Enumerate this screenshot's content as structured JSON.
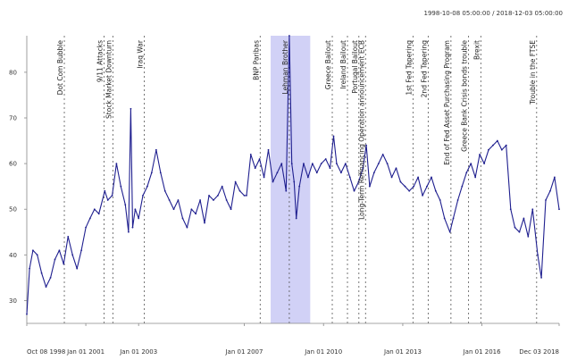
{
  "chart_data": {
    "type": "line",
    "title": "",
    "subtitle": "1998-10-08 05:00:00 / 2018-12-03 05:00:00",
    "xlabel": "",
    "ylabel": "",
    "xlim": [
      "1998-10-08",
      "2018-12-03"
    ],
    "ylim": [
      25,
      88
    ],
    "grid": false,
    "legend": "none",
    "colors": {
      "line": "#1f1f8f",
      "shade": "#c9c9f5",
      "event_line": "#555555"
    },
    "y_ticks": [
      30,
      40,
      50,
      60,
      70,
      80
    ],
    "x_ticks": [
      {
        "label": "Oct 08 1998",
        "date": "1998-10-08"
      },
      {
        "label": "Jan 01 2001",
        "date": "2001-01-01"
      },
      {
        "label": "Jan 01 2003",
        "date": "2003-01-01"
      },
      {
        "label": "Jan 01 2007",
        "date": "2007-01-01"
      },
      {
        "label": "Jan 01 2010",
        "date": "2010-01-01"
      },
      {
        "label": "Jan 01 2013",
        "date": "2013-01-01"
      },
      {
        "label": "Jan 01 2016",
        "date": "2016-01-01"
      },
      {
        "label": "Dec 03 2018",
        "date": "2018-12-03"
      }
    ],
    "shaded_regions": [
      {
        "start": "2008-01-01",
        "end": "2009-07-01"
      }
    ],
    "events": [
      {
        "date": "2000-03-10",
        "label": "Dot Com Bubble"
      },
      {
        "date": "2001-09-11",
        "label": "9/11 Attacks"
      },
      {
        "date": "2002-01-10",
        "label": "Stock Market Downturn"
      },
      {
        "date": "2003-03-20",
        "label": "Iraq War"
      },
      {
        "date": "2007-08-09",
        "label": "BNP Paribas"
      },
      {
        "date": "2008-09-15",
        "label": "Lehman Brother"
      },
      {
        "date": "2010-05-02",
        "label": "Greece Bailout"
      },
      {
        "date": "2010-11-28",
        "label": "Ireland Bailout"
      },
      {
        "date": "2011-05-05",
        "label": "Portugal Bailout"
      },
      {
        "date": "2011-08-05",
        "label": "Long-Term Refinancing Operation announcement ECB"
      },
      {
        "date": "2013-05-22",
        "label": "1st Fed Tapering"
      },
      {
        "date": "2013-12-18",
        "label": "2nd Fed Tapering"
      },
      {
        "date": "2014-10-29",
        "label": "End of Fed Asset Purchasing Program"
      },
      {
        "date": "2015-06-30",
        "label": "Greece Bank Crisis bonds trouble"
      },
      {
        "date": "2015-12-16",
        "label": "Brexit"
      },
      {
        "date": "2018-01-26",
        "label": "Trouble in the FTSE"
      }
    ],
    "series": [
      {
        "x": [
          "1998-10-08",
          "1998-11-15",
          "1999-01-01",
          "1999-03-01",
          "1999-05-01",
          "1999-07-01",
          "1999-09-01",
          "1999-11-01",
          "2000-01-01",
          "2000-03-01",
          "2000-05-01",
          "2000-07-01",
          "2000-09-01",
          "2000-11-01",
          "2001-01-01",
          "2001-03-01",
          "2001-05-01",
          "2001-07-01",
          "2001-09-20",
          "2001-11-01",
          "2002-01-01",
          "2002-03-01",
          "2002-05-01",
          "2002-07-01",
          "2002-08-15",
          "2002-09-15",
          "2002-10-10",
          "2002-11-15",
          "2003-01-01",
          "2003-03-01",
          "2003-05-01",
          "2003-07-01",
          "2003-09-01",
          "2003-11-01",
          "2004-01-01",
          "2004-03-01",
          "2004-05-01",
          "2004-07-01",
          "2004-09-01",
          "2004-11-01",
          "2005-01-01",
          "2005-03-01",
          "2005-05-01",
          "2005-07-01",
          "2005-09-01",
          "2005-11-01",
          "2006-01-01",
          "2006-03-01",
          "2006-05-01",
          "2006-07-01",
          "2006-09-01",
          "2006-11-01",
          "2007-01-01",
          "2007-02-01",
          "2007-04-01",
          "2007-06-01",
          "2007-08-01",
          "2007-10-01",
          "2007-12-01",
          "2008-02-01",
          "2008-04-01",
          "2008-06-01",
          "2008-08-01",
          "2008-09-15",
          "2008-10-20",
          "2008-11-20",
          "2008-12-20",
          "2009-02-01",
          "2009-04-01",
          "2009-06-01",
          "2009-08-01",
          "2009-10-01",
          "2009-12-01",
          "2010-02-01",
          "2010-04-01",
          "2010-05-20",
          "2010-07-01",
          "2010-09-01",
          "2010-11-01",
          "2011-01-01",
          "2011-03-01",
          "2011-05-01",
          "2011-07-01",
          "2011-08-15",
          "2011-10-01",
          "2011-12-01",
          "2012-02-01",
          "2012-04-01",
          "2012-06-01",
          "2012-08-01",
          "2012-10-01",
          "2012-12-01",
          "2013-02-01",
          "2013-04-01",
          "2013-06-01",
          "2013-08-01",
          "2013-10-01",
          "2013-12-01",
          "2014-02-01",
          "2014-04-01",
          "2014-06-01",
          "2014-08-01",
          "2014-10-15",
          "2014-12-01",
          "2015-02-01",
          "2015-04-01",
          "2015-06-01",
          "2015-08-01",
          "2015-10-01",
          "2015-12-01",
          "2016-02-01",
          "2016-04-01",
          "2016-06-01",
          "2016-08-01",
          "2016-10-01",
          "2016-12-01",
          "2017-02-01",
          "2017-04-01",
          "2017-06-01",
          "2017-08-01",
          "2017-10-01",
          "2017-12-01",
          "2018-02-10",
          "2018-04-01",
          "2018-06-01",
          "2018-08-01",
          "2018-10-01",
          "2018-12-03"
        ],
        "values": [
          27,
          37,
          41,
          40,
          36,
          33,
          35,
          39,
          41,
          38,
          44,
          40,
          37,
          41,
          46,
          48,
          50,
          49,
          54,
          52,
          53,
          60,
          55,
          51,
          45,
          72,
          46,
          50,
          48,
          53,
          55,
          58,
          63,
          58,
          54,
          52,
          50,
          52,
          48,
          46,
          50,
          49,
          52,
          47,
          53,
          52,
          53,
          55,
          52,
          50,
          56,
          54,
          53,
          53,
          62,
          59,
          61,
          57,
          63,
          56,
          58,
          60,
          54,
          88,
          60,
          56,
          48,
          55,
          60,
          57,
          60,
          58,
          60,
          61,
          59,
          66,
          60,
          58,
          60,
          57,
          54,
          56,
          59,
          64,
          55,
          58,
          60,
          62,
          60,
          57,
          59,
          56,
          55,
          54,
          55,
          57,
          53,
          55,
          57,
          54,
          52,
          48,
          45,
          48,
          52,
          55,
          58,
          60,
          57,
          62,
          60,
          63,
          64,
          65,
          63,
          64,
          50,
          46,
          45,
          48,
          44,
          50,
          40,
          35,
          52,
          54,
          57,
          50
        ]
      }
    ]
  }
}
